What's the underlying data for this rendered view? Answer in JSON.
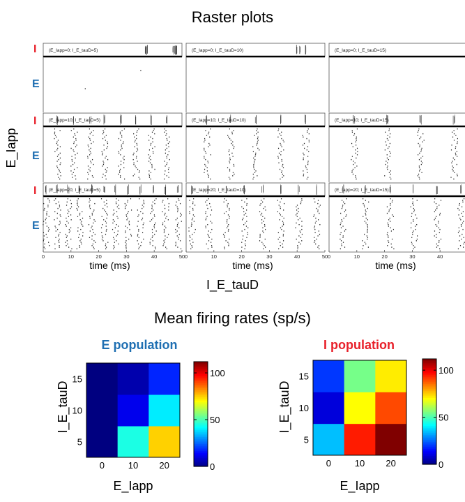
{
  "titles": {
    "raster": "Raster plots",
    "rates": "Mean firing rates (sp/s)"
  },
  "raster": {
    "ylabel": "E_Iapp",
    "xlabel": "I_E_tauD",
    "panel_xlabel": "time (ms)",
    "I_label": "I",
    "E_label": "E",
    "xticks": [
      "0",
      "10",
      "20",
      "30",
      "40",
      "50"
    ],
    "xrange": [
      0,
      50
    ],
    "panels": [
      {
        "label": "(E_Iapp=0; I_E_tauD=5)",
        "E_Iapp": 0,
        "I_E_tauD": 5,
        "I_spikes": [
          37,
          37.5,
          47,
          47.5,
          48
        ],
        "E_spikes": [
          15,
          35
        ]
      },
      {
        "label": "(E_Iapp=0; I_E_tauD=10)",
        "E_Iapp": 0,
        "I_E_tauD": 10,
        "I_spikes": [
          40,
          41,
          43
        ],
        "E_spikes": []
      },
      {
        "label": "(E_Iapp=0; I_E_tauD=15)",
        "E_Iapp": 0,
        "I_E_tauD": 15,
        "I_spikes": [],
        "E_spikes": []
      },
      {
        "label": "(E_Iapp=10; I_E_tauD=5)",
        "E_Iapp": 10,
        "I_E_tauD": 5,
        "I_spikes": [
          5,
          11,
          17,
          22,
          28,
          33.5,
          39,
          44.5
        ],
        "E_spikes": [
          5,
          11,
          17,
          22,
          28,
          33.5,
          39,
          44.5
        ]
      },
      {
        "label": "(E_Iapp=10; I_E_tauD=10)",
        "E_Iapp": 10,
        "I_E_tauD": 10,
        "I_spikes": [
          7.5,
          16,
          25,
          34,
          43
        ],
        "E_spikes": [
          7.5,
          16,
          25,
          34,
          43
        ]
      },
      {
        "label": "(E_Iapp=10; I_E_tauD=15)",
        "E_Iapp": 10,
        "I_E_tauD": 15,
        "I_spikes": [
          9,
          21,
          33,
          45
        ],
        "E_spikes": [
          9,
          21,
          33,
          45
        ]
      },
      {
        "label": "(E_Iapp=20; I_E_tauD=5)",
        "E_Iapp": 20,
        "I_E_tauD": 5,
        "I_spikes": [
          1,
          5,
          9,
          13,
          17.5,
          22,
          26,
          30.5,
          35,
          39.5,
          44,
          48.5
        ],
        "E_spikes": [
          1,
          5,
          9,
          13,
          17.5,
          22,
          26,
          30.5,
          35,
          39.5,
          44,
          48.5
        ]
      },
      {
        "label": "(E_Iapp=20; I_E_tauD=10)",
        "E_Iapp": 20,
        "I_E_tauD": 10,
        "I_spikes": [
          2,
          8,
          14.5,
          21,
          27.5,
          34,
          40.5,
          47
        ],
        "E_spikes": [
          2,
          8,
          14.5,
          21,
          27.5,
          34,
          40.5,
          47
        ]
      },
      {
        "label": "(E_Iapp=20; I_E_tauD=15)",
        "E_Iapp": 20,
        "I_E_tauD": 15,
        "I_spikes": [
          5,
          13,
          22,
          30.5,
          39,
          47.5
        ],
        "E_spikes": [
          5,
          13,
          22,
          30.5,
          39,
          47.5
        ]
      }
    ]
  },
  "heatmaps": {
    "xlabel": "E_Iapp",
    "ylabel": "I_E_tauD",
    "xticks": [
      "0",
      "10",
      "20"
    ],
    "yticks": [
      "5",
      "10",
      "15"
    ],
    "colorbar_ticks": [
      "0",
      "50",
      "100"
    ],
    "cmin": 0,
    "cmax": 112,
    "E": {
      "title": "E population",
      "title_color": "#1f6fb2",
      "rows_tauD_5_10_15": [
        [
          0,
          45,
          75
        ],
        [
          0,
          12,
          40
        ],
        [
          0,
          5,
          18
        ]
      ]
    },
    "I": {
      "title": "I population",
      "title_color": "#e8202a",
      "rows_tauD_5_10_15": [
        [
          35,
          95,
          112
        ],
        [
          10,
          70,
          90
        ],
        [
          20,
          55,
          72
        ]
      ]
    }
  },
  "chart_data": [
    {
      "type": "scatter",
      "title": "Raster plots",
      "xlabel": "time (ms)",
      "ylabel": "E_Iapp",
      "xlim": [
        0,
        50
      ],
      "note_rows": "rows E_Iapp 0/10/20, columns I_E_tauD 5/10/15"
    },
    {
      "type": "heatmap",
      "title": "E population",
      "x": [
        0,
        10,
        20
      ],
      "y": [
        5,
        10,
        15
      ],
      "values": [
        [
          0,
          45,
          75
        ],
        [
          0,
          12,
          40
        ],
        [
          0,
          5,
          18
        ]
      ],
      "xlabel": "E_Iapp",
      "ylabel": "I_E_tauD",
      "zlim": [
        0,
        112
      ]
    },
    {
      "type": "heatmap",
      "title": "I population",
      "x": [
        0,
        10,
        20
      ],
      "y": [
        5,
        10,
        15
      ],
      "values": [
        [
          35,
          95,
          112
        ],
        [
          10,
          70,
          90
        ],
        [
          20,
          55,
          72
        ]
      ],
      "xlabel": "E_Iapp",
      "ylabel": "I_E_tauD",
      "zlim": [
        0,
        112
      ]
    }
  ]
}
